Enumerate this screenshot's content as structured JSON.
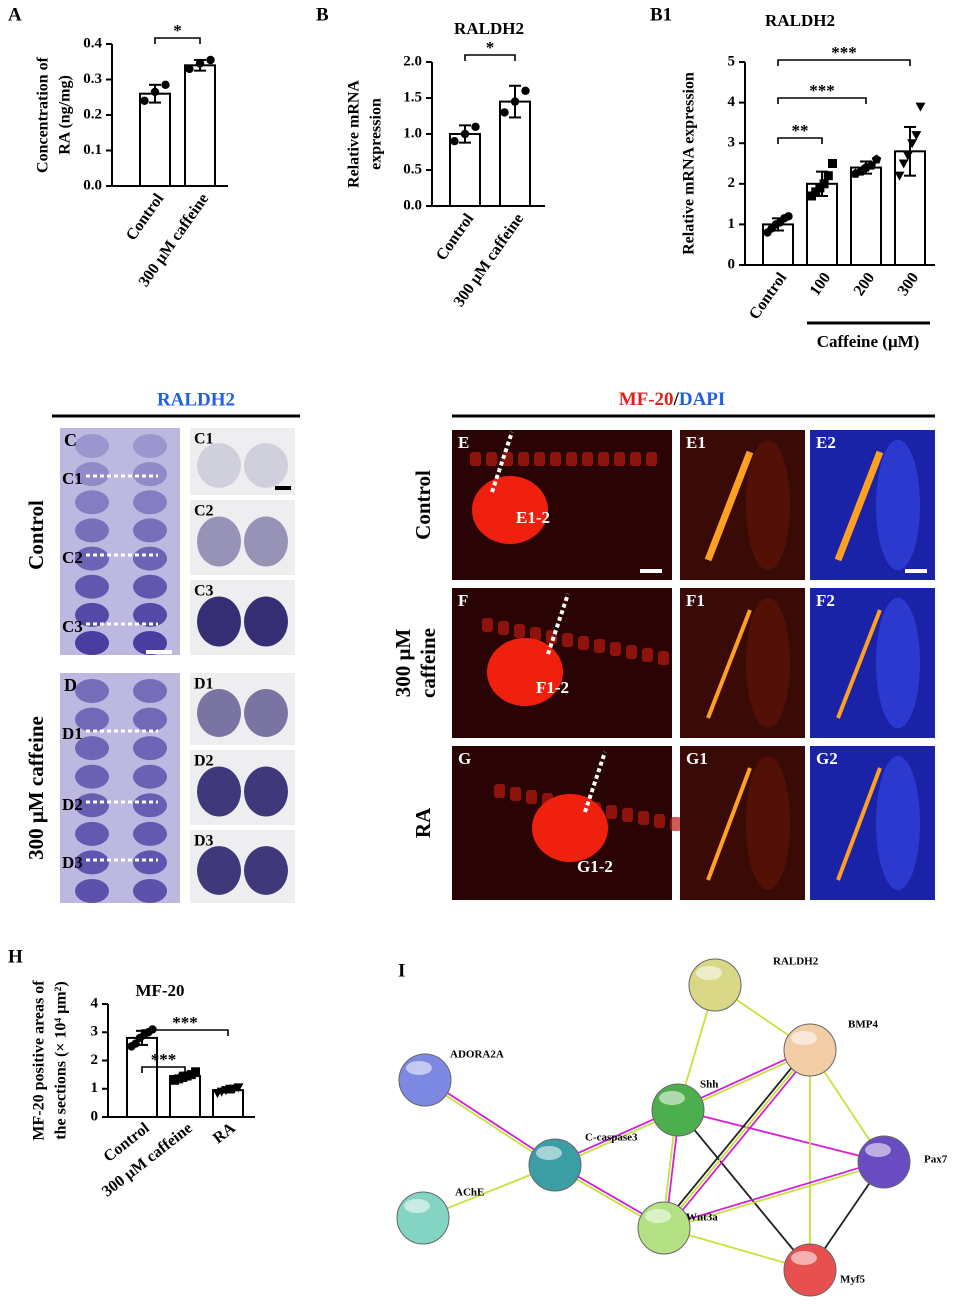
{
  "chart_data": [
    {
      "type": "bar",
      "label": "A",
      "ylabel": [
        "Concentration of",
        "RA (ng/mg)"
      ],
      "categories": [
        "Control",
        "300 μM caffeine"
      ],
      "values": [
        0.26,
        0.34
      ],
      "errors": [
        0.025,
        0.015
      ],
      "points": [
        [
          0.24,
          0.265,
          0.285
        ],
        [
          0.33,
          0.345,
          0.355
        ]
      ],
      "ylim": [
        0,
        0.4
      ],
      "yticks": [
        {
          "value": 0,
          "label": "0.0"
        },
        0.1,
        0.2,
        0.3,
        0.4
      ],
      "significance": [
        {
          "from": 0,
          "to": 1,
          "label": "*"
        }
      ],
      "color": "#ffffff"
    },
    {
      "type": "bar",
      "label": "B",
      "title": "RALDH2",
      "ylabel": [
        "Relative mRNA",
        "expression"
      ],
      "categories": [
        "Control",
        "300 μM caffeine"
      ],
      "values": [
        1.0,
        1.45
      ],
      "errors": [
        0.12,
        0.22
      ],
      "points": [
        [
          0.9,
          1.0,
          1.1
        ],
        [
          1.3,
          1.45,
          1.6
        ]
      ],
      "ylim": [
        0,
        2
      ],
      "yticks": [
        {
          "value": 0,
          "label": "0.0"
        },
        0.5,
        {
          "value": 1,
          "label": "1.0"
        },
        1.5,
        {
          "value": 2,
          "label": "2.0"
        }
      ],
      "significance": [
        {
          "from": 0,
          "to": 1,
          "label": "*"
        }
      ],
      "color": "#ffffff"
    },
    {
      "type": "bar",
      "label": "B1",
      "title": "RALDH2",
      "ylabel": [
        "Relative mRNA expression"
      ],
      "categories": [
        "Control",
        "100",
        "200",
        "300"
      ],
      "group_label": "Caffeine (μM)",
      "values": [
        1.0,
        2.0,
        2.4,
        2.8
      ],
      "errors": [
        0.15,
        0.3,
        0.15,
        0.6
      ],
      "points": [
        [
          0.8,
          0.9,
          1.0,
          1.05,
          1.15,
          1.2
        ],
        [
          1.7,
          1.8,
          1.9,
          2.0,
          2.2,
          2.5
        ],
        [
          2.25,
          2.3,
          2.4,
          2.45,
          2.6
        ],
        [
          2.2,
          2.5,
          2.7,
          3.0,
          3.2,
          3.9
        ]
      ],
      "ylim": [
        0,
        5
      ],
      "yticks": [
        0,
        1,
        2,
        3,
        4,
        5
      ],
      "significance": [
        {
          "from": 0,
          "to": 1,
          "label": "**"
        },
        {
          "from": 0,
          "to": 2,
          "label": "***"
        },
        {
          "from": 0,
          "to": 3,
          "label": "***"
        }
      ],
      "color": "#ffffff"
    },
    {
      "type": "bar",
      "label": "H",
      "title": "MF-20",
      "ylabel": [
        "MF-20 positive areas of",
        "the sections (× 10⁴ μm²)"
      ],
      "categories": [
        "Control",
        "300 μM caffeine",
        "RA"
      ],
      "values": [
        2.8,
        1.45,
        0.95
      ],
      "errors": [
        0.25,
        0.12,
        0.08
      ],
      "points": [
        [
          2.5,
          2.6,
          2.8,
          2.9,
          3.0,
          3.1
        ],
        [
          1.3,
          1.35,
          1.4,
          1.45,
          1.5,
          1.6
        ],
        [
          0.85,
          0.9,
          0.95,
          1.0,
          1.0,
          1.05
        ]
      ],
      "ylim": [
        0,
        4
      ],
      "yticks": [
        0,
        1,
        2,
        3,
        4
      ],
      "significance": [
        {
          "from": 0,
          "to": 1,
          "label": "***"
        },
        {
          "from": 0,
          "to": 2,
          "label": "***"
        }
      ],
      "color": "#ffffff"
    }
  ],
  "panels": {
    "raldh2": {
      "header": "RALDH2",
      "rows": [
        "Control",
        "300 μM caffeine"
      ],
      "labels": [
        "C",
        "D"
      ],
      "section_labels": [
        "C1",
        "C2",
        "C3",
        "D1",
        "D2",
        "D3"
      ],
      "cut_labels": [
        "C1",
        "C2",
        "C3",
        "D1",
        "D2",
        "D3"
      ]
    },
    "mf20": {
      "header": [
        "MF-20",
        "/",
        "DAPI"
      ],
      "rows": [
        "Control",
        [
          "300 μM",
          "caffeine"
        ],
        "RA"
      ],
      "labels": [
        "E",
        "E1",
        "E2",
        "F",
        "F1",
        "F2",
        "G",
        "G1",
        "G2"
      ],
      "cut_labels": [
        "E1-2",
        "F1-2",
        "G1-2"
      ]
    }
  },
  "network": {
    "label": "I",
    "nodes": [
      "RALDH2",
      "BMP4",
      "ADORA2A",
      "Shh",
      "C-caspase3",
      "Pax7",
      "AChE",
      "Wnt3a",
      "Myf5"
    ]
  }
}
